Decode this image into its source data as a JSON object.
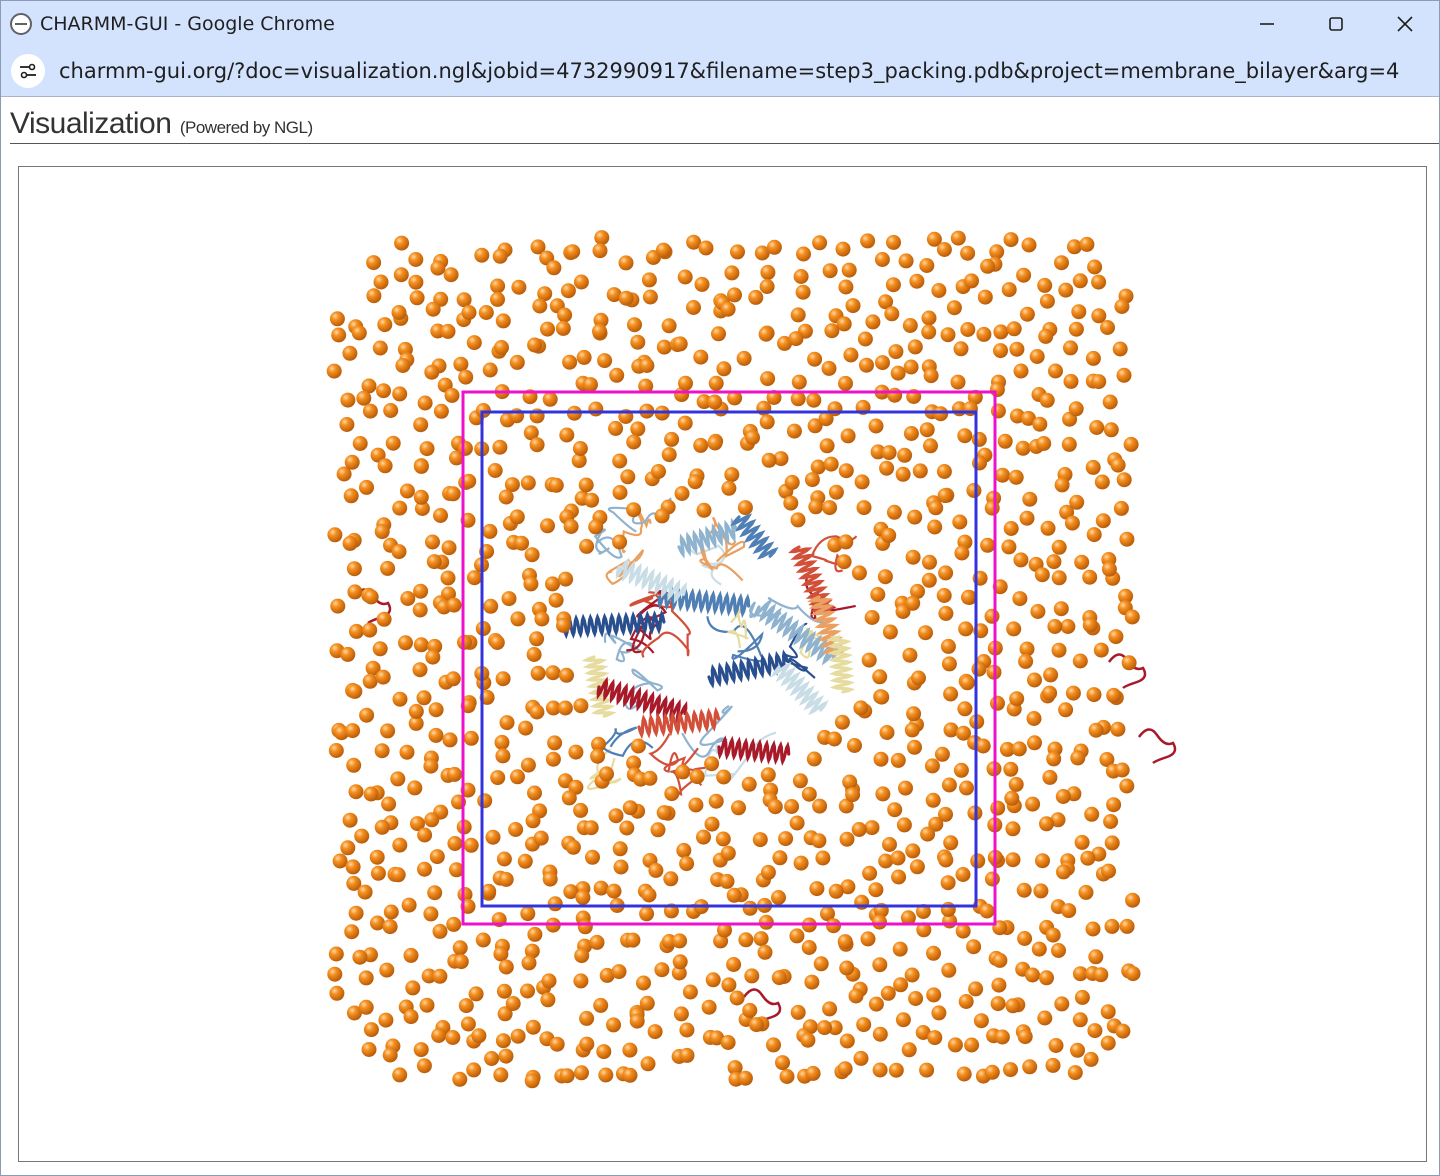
{
  "window": {
    "title": "CHARMM-GUI - Google Chrome",
    "url": "charmm-gui.org/?doc=visualization.ngl&jobid=4732990917&filename=step3_packing.pdb&project=membrane_bilayer&arg=4"
  },
  "page": {
    "title": "Visualization",
    "subtitle": "(Powered by NGL)"
  },
  "viewer": {
    "atom_color": "#f07a10",
    "inner_box_color": "#3333dd",
    "outer_box_color": "#ee11cc",
    "protein_colors": [
      "#2a4f8f",
      "#4f7fb5",
      "#8fb3cf",
      "#c9dde6",
      "#e6dca0",
      "#e9a060",
      "#d2503a",
      "#a81a2a"
    ]
  }
}
